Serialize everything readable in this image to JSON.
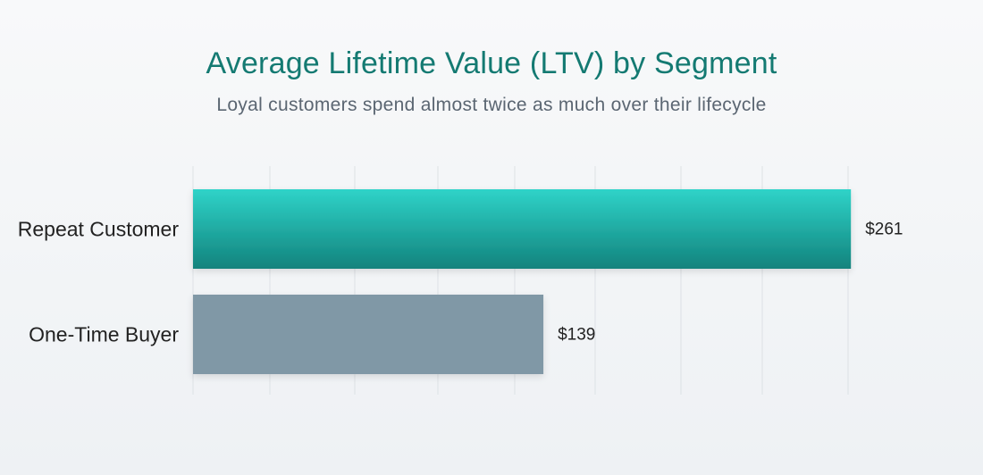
{
  "chart_data": {
    "type": "bar",
    "orientation": "horizontal",
    "title": "Average Lifetime Value (LTV) by Segment",
    "subtitle": "Loyal customers spend almost twice as much over their lifecycle",
    "categories": [
      "Repeat Customer",
      "One-Time Buyer"
    ],
    "values": [
      261,
      139
    ],
    "value_labels": [
      "$261",
      "$139"
    ],
    "xlim": [
      0,
      290
    ],
    "grid": true,
    "legend": "none",
    "colors": {
      "repeat_top": "#2fd3c8",
      "repeat_bottom": "#12837d",
      "onetime": "#8098a6",
      "grid": "#dde1e5",
      "title": "#147a72",
      "subtitle": "#5b6672"
    }
  }
}
